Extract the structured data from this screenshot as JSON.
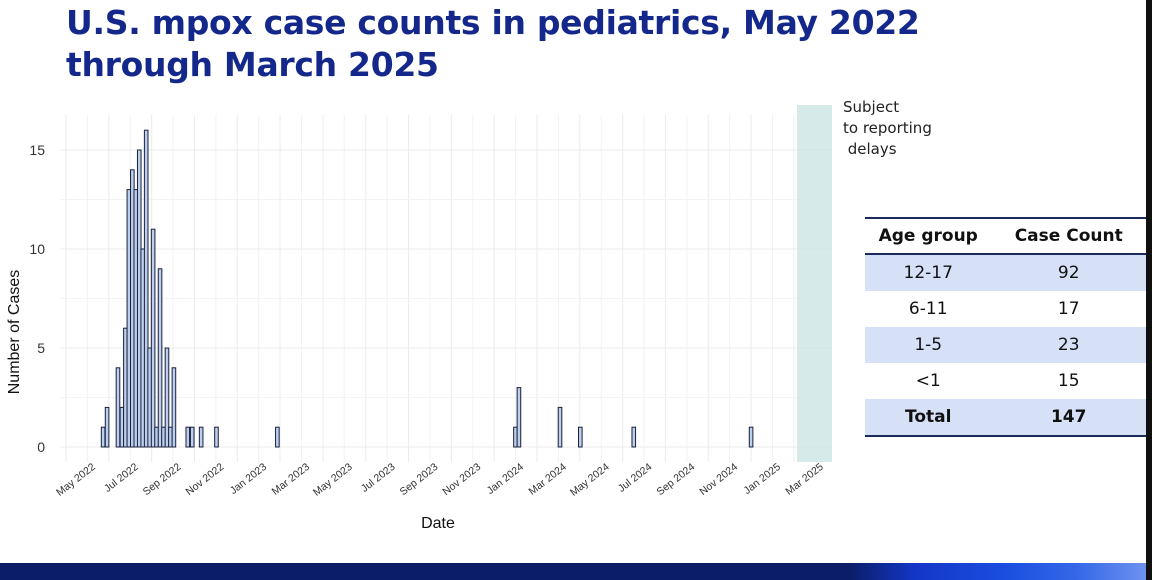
{
  "slide": {
    "title": "U.S. mpox case counts in pediatrics, May 2022 through March 2025",
    "delay_note": "Subject\nto reporting\n delays"
  },
  "chart_data": {
    "type": "bar",
    "xlabel": "Date",
    "ylabel": "Number of Cases",
    "ylim": [
      0,
      17
    ],
    "y_ticks": [
      0,
      5,
      10,
      15
    ],
    "grid": true,
    "x_ticks": [
      "May 2022",
      "Jul 2022",
      "Sep 2022",
      "Nov 2022",
      "Jan 2023",
      "Mar 2023",
      "May 2023",
      "Jul 2023",
      "Sep 2023",
      "Nov 2023",
      "Jan 2024",
      "Mar 2024",
      "May 2024",
      "Jul 2024",
      "Sep 2024",
      "Nov 2024",
      "Jan 2025",
      "Mar 2025"
    ],
    "x_unit": "weeks since 2022-05-01 (week-level counts)",
    "shaded_region_label": "Subject to reporting delays",
    "bar_weeks": [
      {
        "week": 7.5,
        "count": 1
      },
      {
        "week": 8.3,
        "count": 2
      },
      {
        "week": 10.5,
        "count": 4
      },
      {
        "week": 11.3,
        "count": 2
      },
      {
        "week": 12,
        "count": 6
      },
      {
        "week": 12.7,
        "count": 13
      },
      {
        "week": 13.4,
        "count": 14
      },
      {
        "week": 14.1,
        "count": 13
      },
      {
        "week": 14.8,
        "count": 15
      },
      {
        "week": 15.5,
        "count": 10
      },
      {
        "week": 16.2,
        "count": 16
      },
      {
        "week": 16.9,
        "count": 5
      },
      {
        "week": 17.6,
        "count": 11
      },
      {
        "week": 18.3,
        "count": 1
      },
      {
        "week": 19,
        "count": 9
      },
      {
        "week": 19.7,
        "count": 1
      },
      {
        "week": 20.4,
        "count": 5
      },
      {
        "week": 21.1,
        "count": 1
      },
      {
        "week": 21.8,
        "count": 4
      },
      {
        "week": 24.6,
        "count": 1
      },
      {
        "week": 25.5,
        "count": 1
      },
      {
        "week": 27.3,
        "count": 1
      },
      {
        "week": 30.4,
        "count": 1
      },
      {
        "week": 42.7,
        "count": 1
      },
      {
        "week": 90.8,
        "count": 1
      },
      {
        "week": 91.5,
        "count": 3
      },
      {
        "week": 99.8,
        "count": 2
      },
      {
        "week": 103.9,
        "count": 1
      },
      {
        "week": 114.7,
        "count": 1
      },
      {
        "week": 138.4,
        "count": 1
      }
    ],
    "table": {
      "headers": [
        "Age group",
        "Case Count"
      ],
      "rows": [
        {
          "age": "12-17",
          "count": "92"
        },
        {
          "age": "6-11",
          "count": "17"
        },
        {
          "age": "1-5",
          "count": "23"
        },
        {
          "age": "<1",
          "count": "15"
        },
        {
          "age": "Total",
          "count": "147"
        }
      ]
    },
    "colors": {
      "bar_fill": "#bcd0ee",
      "bar_stroke": "#1a1f3a",
      "shade": "#cfe6e6",
      "grid": "#ebebeb",
      "title": "#14288c"
    }
  }
}
